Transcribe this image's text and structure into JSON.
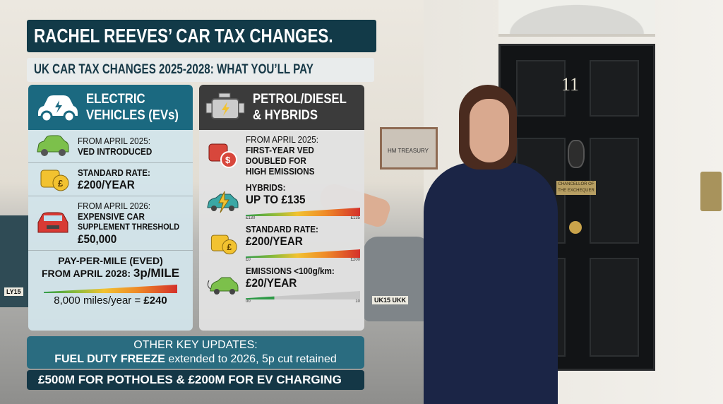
{
  "title": "RACHEL REEVES’ CAR TAX CHANGES.",
  "subtitle": "UK CAR TAX CHANGES 2025-2028: WHAT YOU’LL PAY",
  "ev": {
    "header": [
      "ELECTRIC",
      "VEHICLES (EVs)"
    ],
    "items": [
      {
        "icon": "green-electric-car-icon",
        "line1": "FROM APRIL 2025:",
        "line2": "VED INTRODUCED"
      },
      {
        "icon": "pound-coins-icon",
        "line1": "STANDARD RATE:",
        "line2": "£200/YEAR"
      },
      {
        "icon": "red-car-icon",
        "line1": "FROM APRIL 2026:",
        "line2": "EXPENSIVE CAR",
        "line3": "SUPPLEMENT THRESHOLD",
        "line4": "£50,000"
      }
    ],
    "ppm": {
      "line1": "PAY-PER-MILE (EVED)",
      "line2": "FROM APRIL 2028:",
      "rate": "3p/MILE",
      "footer_text": "8,000 miles/year = ",
      "footer_value": "£240"
    }
  },
  "petrol": {
    "header": [
      "PETROL/DIESEL",
      "& HYBRIDS"
    ],
    "items": [
      {
        "icon": "dollar-coins-icon",
        "line1": "FROM APRIL 2025:",
        "line2": "FIRST-YEAR VED",
        "line3": "DOUBLED FOR",
        "line4": "HIGH EMISSIONS"
      },
      {
        "icon": "hybrid-car-icon",
        "line1": "HYBRIDS:",
        "line2": "UP TO £135",
        "gauge_min": "£130",
        "gauge_max": "£135"
      },
      {
        "icon": "pound-coins-icon",
        "line1": "STANDARD RATE:",
        "line2": "£200/YEAR",
        "gauge_min": "£0",
        "gauge_max": "£200"
      },
      {
        "icon": "plug-in-car-icon",
        "line1": "EMISSIONS <100g/km:",
        "line2": "£20/YEAR",
        "gauge_min": "00",
        "gauge_max": "10"
      }
    ]
  },
  "other": {
    "heading": "OTHER KEY UPDATES:",
    "bold": "FUEL DUTY FREEZE",
    "text": " extended to 2026, 5p cut retained"
  },
  "funding": "£500M FOR POTHOLES & £200M FOR EV CHARGING",
  "photo": {
    "door_number": "11",
    "treasury_sign": "HM TREASURY",
    "door_plate": "CHANCELLOR OF THE EXCHEQUER",
    "plate_left": "LY15",
    "plate_mid": "UK15 UKK"
  },
  "colors": {
    "title_bg": "#123a48",
    "ev_header": "#1b6980",
    "petrol_header": "#3b3b3b",
    "other_bg": "#2a6c80",
    "funding_bg": "#143746"
  }
}
